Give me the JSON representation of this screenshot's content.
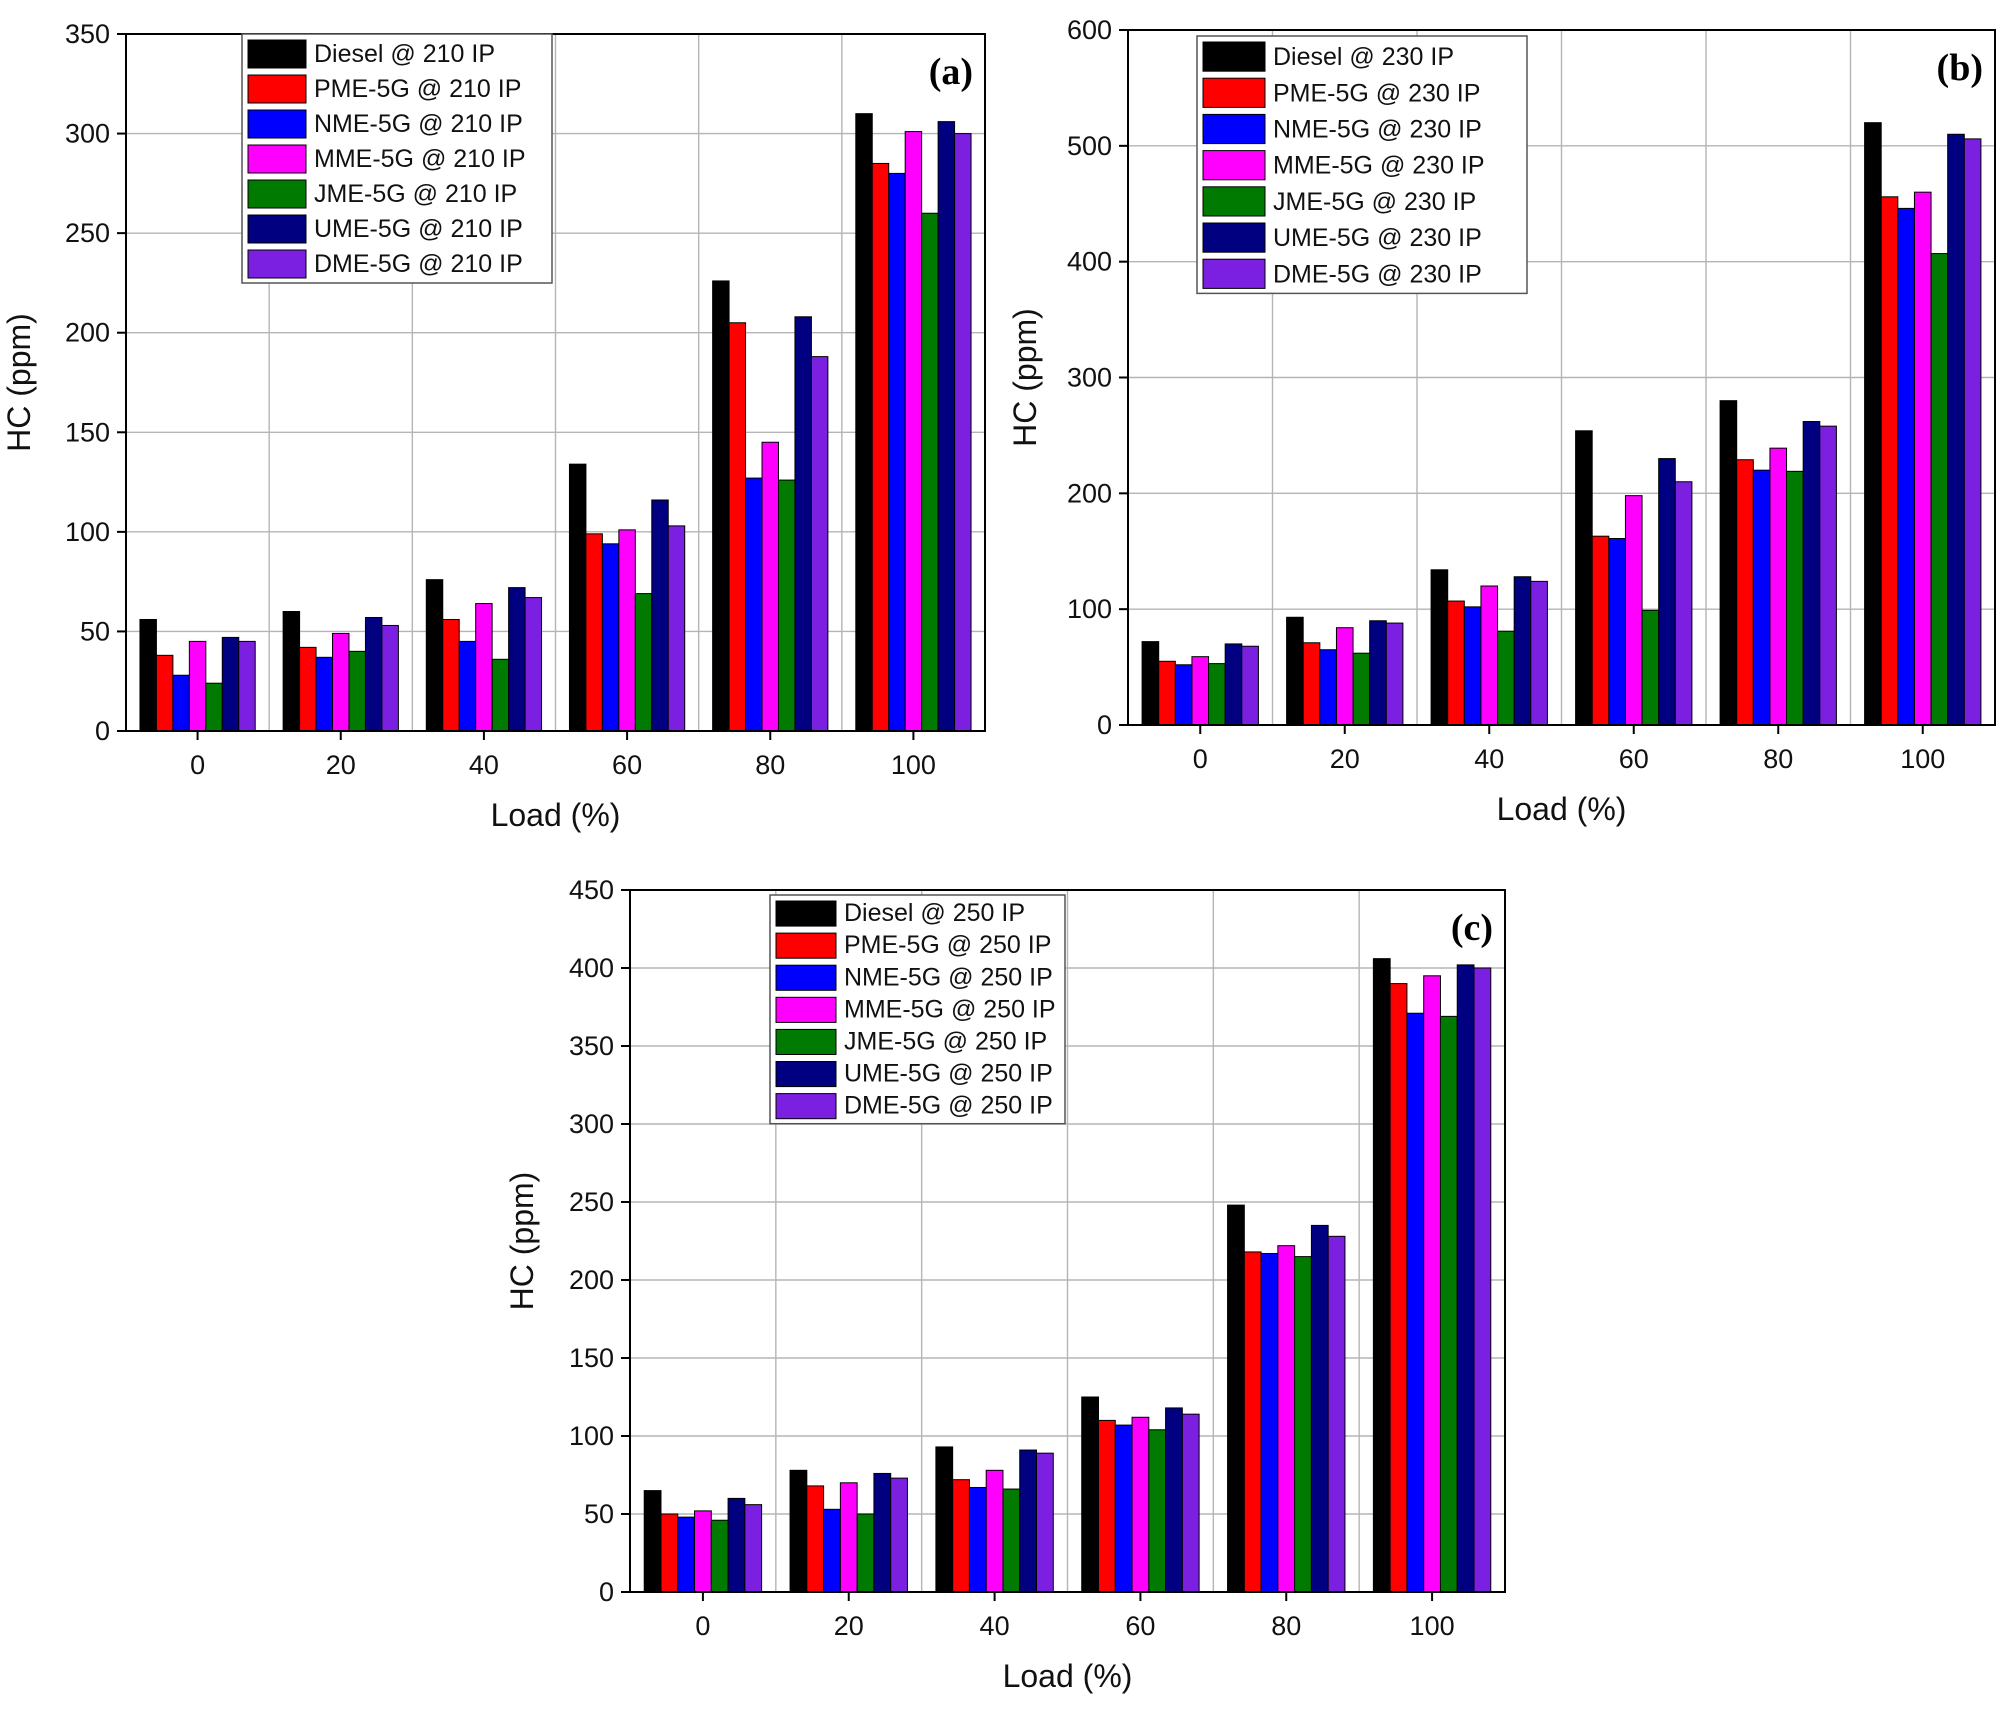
{
  "chart_data": [
    {
      "type": "bar",
      "panel_label": "(a)",
      "xlabel": "Load (%)",
      "ylabel": "HC (ppm)",
      "ylim": [
        0,
        350
      ],
      "yticks": [
        0,
        50,
        100,
        150,
        200,
        250,
        300,
        350
      ],
      "grid": true,
      "legend_position": "top-left",
      "categories": [
        "0",
        "20",
        "40",
        "60",
        "80",
        "100"
      ],
      "series": [
        {
          "name": "Diesel @ 210 IP",
          "color": "#000000",
          "values": [
            56,
            60,
            76,
            134,
            226,
            310
          ]
        },
        {
          "name": "PME-5G @ 210 IP",
          "color": "#ff0000",
          "values": [
            38,
            42,
            56,
            99,
            205,
            285
          ]
        },
        {
          "name": "NME-5G @ 210 IP",
          "color": "#0000ff",
          "values": [
            28,
            37,
            45,
            94,
            127,
            280
          ]
        },
        {
          "name": "MME-5G @ 210 IP",
          "color": "#ff00ff",
          "values": [
            45,
            49,
            64,
            101,
            145,
            301
          ]
        },
        {
          "name": "JME-5G @ 210 IP",
          "color": "#007a00",
          "values": [
            24,
            40,
            36,
            69,
            126,
            260
          ]
        },
        {
          "name": "UME-5G @ 210 IP",
          "color": "#000080",
          "values": [
            47,
            57,
            72,
            116,
            208,
            306
          ]
        },
        {
          "name": "DME-5G @ 210 IP",
          "color": "#7b1fe0",
          "values": [
            45,
            53,
            67,
            103,
            188,
            300
          ]
        }
      ]
    },
    {
      "type": "bar",
      "panel_label": "(b)",
      "xlabel": "Load (%)",
      "ylabel": "HC (ppm)",
      "ylim": [
        0,
        600
      ],
      "yticks": [
        0,
        100,
        200,
        300,
        400,
        500,
        600
      ],
      "grid": true,
      "legend_position": "top-left",
      "categories": [
        "0",
        "20",
        "40",
        "60",
        "80",
        "100"
      ],
      "series": [
        {
          "name": "Diesel @ 230 IP",
          "color": "#000000",
          "values": [
            72,
            93,
            134,
            254,
            280,
            520
          ]
        },
        {
          "name": "PME-5G @ 230 IP",
          "color": "#ff0000",
          "values": [
            55,
            71,
            107,
            163,
            229,
            456
          ]
        },
        {
          "name": "NME-5G @ 230 IP",
          "color": "#0000ff",
          "values": [
            52,
            65,
            102,
            161,
            220,
            446
          ]
        },
        {
          "name": "MME-5G @ 230 IP",
          "color": "#ff00ff",
          "values": [
            59,
            84,
            120,
            198,
            239,
            460
          ]
        },
        {
          "name": "JME-5G @ 230 IP",
          "color": "#007a00",
          "values": [
            53,
            62,
            81,
            99,
            219,
            407
          ]
        },
        {
          "name": "UME-5G @ 230 IP",
          "color": "#000080",
          "values": [
            70,
            90,
            128,
            230,
            262,
            510
          ]
        },
        {
          "name": "DME-5G @ 230 IP",
          "color": "#7b1fe0",
          "values": [
            68,
            88,
            124,
            210,
            258,
            506
          ]
        }
      ]
    },
    {
      "type": "bar",
      "panel_label": "(c)",
      "xlabel": "Load (%)",
      "ylabel": "HC (ppm)",
      "ylim": [
        0,
        450
      ],
      "yticks": [
        0,
        50,
        100,
        150,
        200,
        250,
        300,
        350,
        400,
        450
      ],
      "grid": true,
      "legend_position": "top-left",
      "categories": [
        "0",
        "20",
        "40",
        "60",
        "80",
        "100"
      ],
      "series": [
        {
          "name": "Diesel @ 250 IP",
          "color": "#000000",
          "values": [
            65,
            78,
            93,
            125,
            248,
            406
          ]
        },
        {
          "name": "PME-5G @ 250 IP",
          "color": "#ff0000",
          "values": [
            50,
            68,
            72,
            110,
            218,
            390
          ]
        },
        {
          "name": "NME-5G @ 250 IP",
          "color": "#0000ff",
          "values": [
            48,
            53,
            67,
            107,
            217,
            371
          ]
        },
        {
          "name": "MME-5G @ 250 IP",
          "color": "#ff00ff",
          "values": [
            52,
            70,
            78,
            112,
            222,
            395
          ]
        },
        {
          "name": "JME-5G @ 250 IP",
          "color": "#007a00",
          "values": [
            46,
            50,
            66,
            104,
            215,
            369
          ]
        },
        {
          "name": "UME-5G @ 250 IP",
          "color": "#000080",
          "values": [
            60,
            76,
            91,
            118,
            235,
            402
          ]
        },
        {
          "name": "DME-5G @ 250 IP",
          "color": "#7b1fe0",
          "values": [
            56,
            73,
            89,
            114,
            228,
            400
          ]
        }
      ]
    }
  ]
}
